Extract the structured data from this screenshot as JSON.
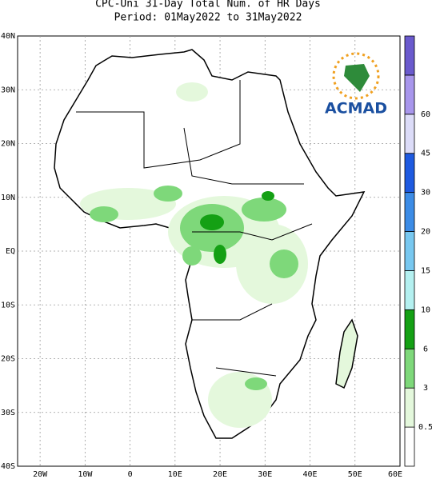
{
  "title": "CPC-Uni 31-Day Total Num. of HR Days",
  "subtitle": "Period: 01May2022 to 31May2022",
  "logo_text": "ACMAD",
  "lat_labels": [
    "40N",
    "30N",
    "20N",
    "10N",
    "EQ",
    "10S",
    "20S",
    "30S",
    "40S"
  ],
  "lon_labels": [
    "20W",
    "10W",
    "0",
    "10E",
    "20E",
    "30E",
    "40E",
    "50E",
    "60E"
  ],
  "colorbar": {
    "labels": [
      "0.5",
      "3",
      "6",
      "10",
      "15",
      "20",
      "30",
      "45",
      "60"
    ],
    "colors": [
      "#ffffff",
      "#e4f8dc",
      "#7ed87a",
      "#14a014",
      "#b4f0f0",
      "#78c8f0",
      "#3c8ce6",
      "#1e5ae0",
      "#dcdcf8",
      "#a896ec",
      "#6a5acd"
    ]
  }
}
